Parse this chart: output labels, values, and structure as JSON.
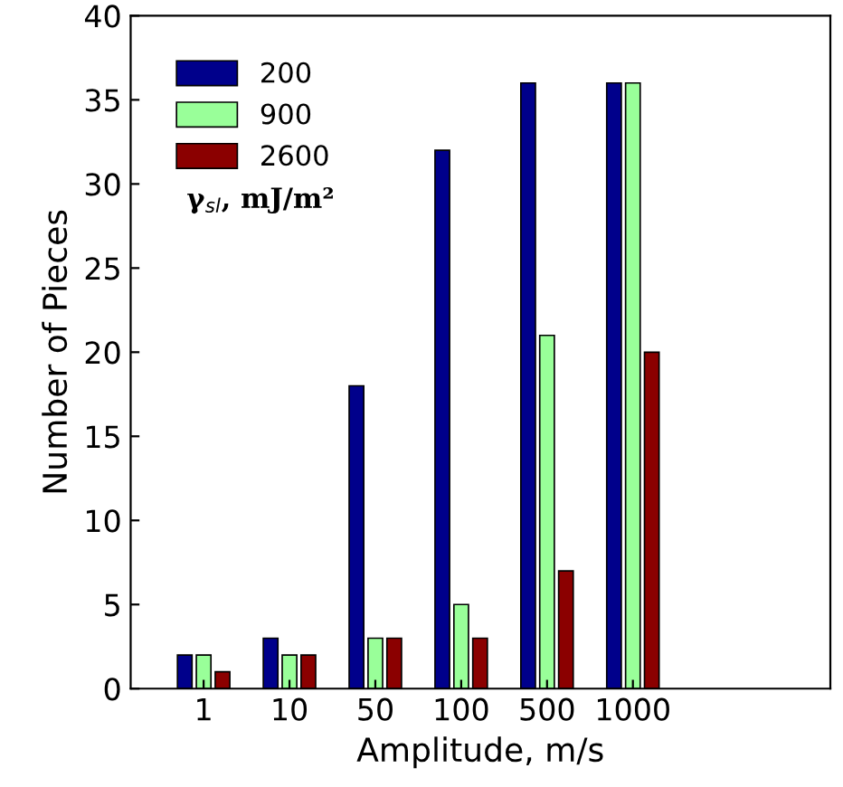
{
  "chart_data": {
    "type": "bar",
    "xlabel": "Amplitude, m/s",
    "ylabel": "Number of Pieces",
    "legend_title": "γ$_{sl}$, mJ/m²",
    "categories": [
      "1",
      "10",
      "50",
      "100",
      "500",
      "1000"
    ],
    "series": [
      {
        "name": "200",
        "color": "#00008b",
        "values": [
          2,
          3,
          18,
          32,
          36,
          36
        ]
      },
      {
        "name": "900",
        "color": "#99ff99",
        "values": [
          2,
          2,
          3,
          5,
          21,
          36
        ]
      },
      {
        "name": "2600",
        "color": "#8b0000",
        "values": [
          1,
          2,
          3,
          3,
          7,
          20
        ]
      }
    ],
    "ylim": [
      0,
      40
    ],
    "yticks": [
      0,
      5,
      10,
      15,
      20,
      25,
      30,
      35,
      40
    ],
    "legend": "top left",
    "grid": false
  }
}
